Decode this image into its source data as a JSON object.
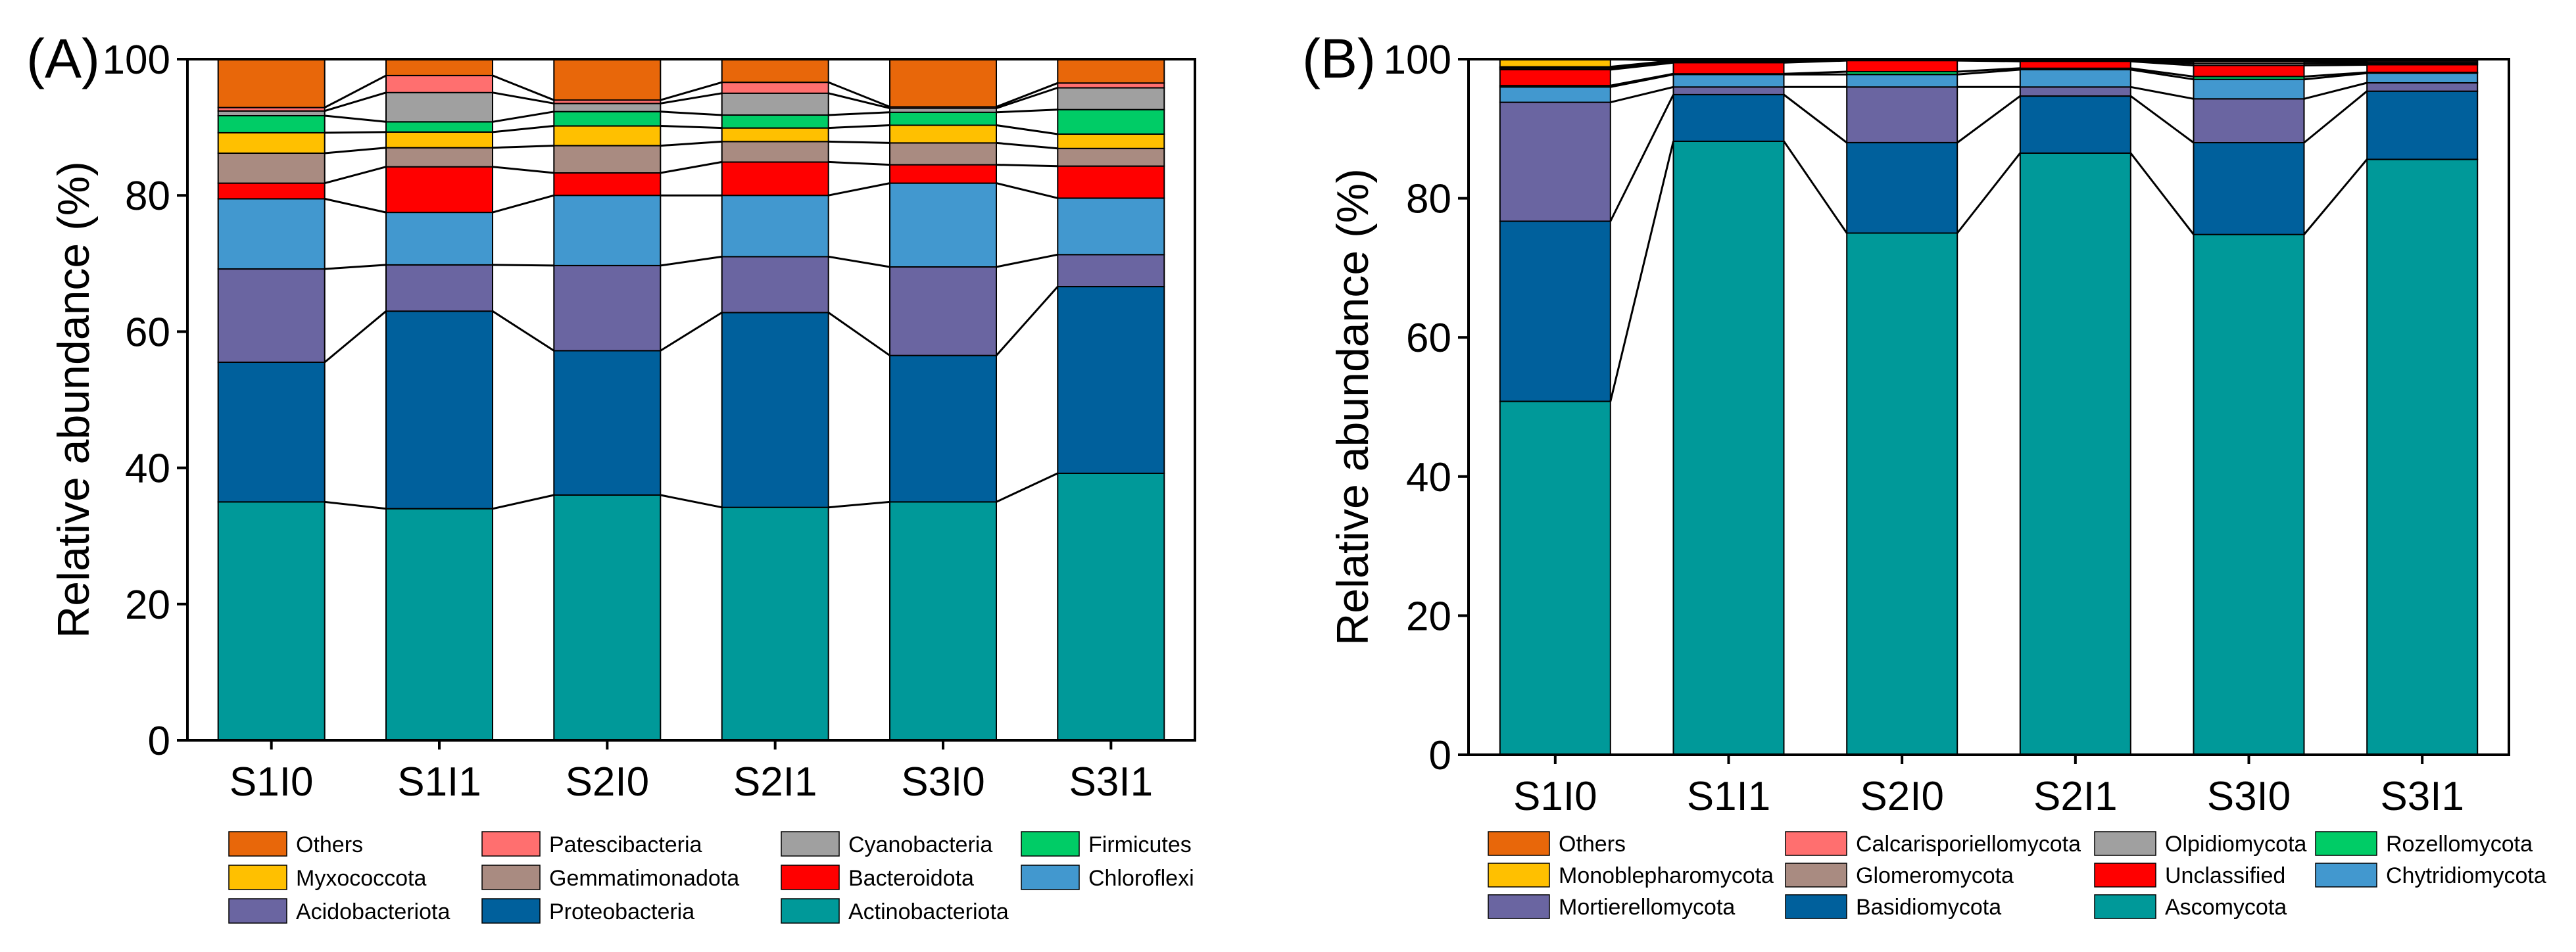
{
  "chart_data": [
    {
      "type": "bar",
      "stacked": true,
      "panel_label": "(A)",
      "ylabel": "Relative abundance (%)",
      "ylim": [
        0,
        100
      ],
      "yticks": [
        0,
        20,
        40,
        60,
        80,
        100
      ],
      "categories": [
        "S1I0",
        "S1I1",
        "S2I0",
        "S2I1",
        "S3I0",
        "S3I1"
      ],
      "series": [
        {
          "name": "Actinobacteriota",
          "color": "#009999",
          "values": [
            35.0,
            34.0,
            36.0,
            34.2,
            35.0,
            39.2
          ]
        },
        {
          "name": "Proteobacteria",
          "color": "#00609C",
          "values": [
            20.5,
            29.0,
            21.2,
            28.6,
            21.5,
            27.4
          ]
        },
        {
          "name": "Acidobacteriota",
          "color": "#6A65A1",
          "values": [
            13.7,
            6.8,
            12.5,
            8.2,
            13.0,
            4.7
          ]
        },
        {
          "name": "Chloroflexi",
          "color": "#4298CF",
          "values": [
            10.3,
            7.7,
            10.3,
            9.0,
            12.3,
            8.3
          ]
        },
        {
          "name": "Bacteroidota",
          "color": "#FF0000",
          "values": [
            2.3,
            6.7,
            3.3,
            4.9,
            2.7,
            4.7
          ]
        },
        {
          "name": "Gemmatimonadota",
          "color": "#A98B81",
          "values": [
            4.4,
            2.8,
            4.0,
            3.0,
            3.2,
            2.6
          ]
        },
        {
          "name": "Myxococcota",
          "color": "#FFC000",
          "values": [
            3.0,
            2.3,
            2.9,
            2.0,
            2.6,
            2.1
          ]
        },
        {
          "name": "Firmicutes",
          "color": "#00CC66",
          "values": [
            2.5,
            1.5,
            2.1,
            1.9,
            1.9,
            3.6
          ]
        },
        {
          "name": "Cyanobacteria",
          "color": "#A0A0A0",
          "values": [
            0.7,
            4.3,
            1.2,
            3.2,
            0.6,
            3.2
          ]
        },
        {
          "name": "Patescibacteria",
          "color": "#FF6F6F",
          "values": [
            0.5,
            2.5,
            0.5,
            1.6,
            0.2,
            0.7
          ]
        },
        {
          "name": "Others",
          "color": "#E8670A",
          "values": [
            7.1,
            2.4,
            6.0,
            3.4,
            7.0,
            3.5
          ]
        }
      ],
      "legend": [
        [
          "Others",
          "Patescibacteria",
          "Cyanobacteria",
          "Firmicutes"
        ],
        [
          "Myxococcota",
          "Gemmatimonadota",
          "Bacteroidota",
          "Chloroflexi"
        ],
        [
          "Acidobacteriota",
          "Proteobacteria",
          "Actinobacteriota"
        ]
      ],
      "legend_position": "bottom"
    },
    {
      "type": "bar",
      "stacked": true,
      "panel_label": "(B)",
      "ylabel": "Relative abundance (%)",
      "ylim": [
        0,
        100
      ],
      "yticks": [
        0,
        20,
        40,
        60,
        80,
        100
      ],
      "categories": [
        "S1I0",
        "S1I1",
        "S2I0",
        "S2I1",
        "S3I0",
        "S3I1"
      ],
      "series": [
        {
          "name": "Ascomycota",
          "color": "#009999",
          "values": [
            50.8,
            88.2,
            75.0,
            86.5,
            74.8,
            85.6
          ]
        },
        {
          "name": "Basidiomycota",
          "color": "#00609C",
          "values": [
            25.9,
            6.7,
            13.0,
            8.2,
            13.2,
            9.8
          ]
        },
        {
          "name": "Mortierellomycota",
          "color": "#6A65A1",
          "values": [
            17.1,
            1.1,
            8.0,
            1.3,
            6.3,
            1.2
          ]
        },
        {
          "name": "Chytridiomycota",
          "color": "#4298CF",
          "values": [
            2.2,
            1.8,
            1.8,
            2.5,
            2.8,
            1.4
          ]
        },
        {
          "name": "Rozellomycota",
          "color": "#00CC66",
          "values": [
            0.2,
            0.1,
            0.4,
            0.2,
            0.4,
            0.1
          ]
        },
        {
          "name": "Unclassified",
          "color": "#FF0000",
          "values": [
            2.3,
            1.6,
            1.6,
            1.0,
            1.6,
            1.1
          ]
        },
        {
          "name": "Olpidiomycota",
          "color": "#A0A0A0",
          "values": [
            0.2,
            0.1,
            0.1,
            0.1,
            0.3,
            0.2
          ]
        },
        {
          "name": "Glomeromycota",
          "color": "#A98B81",
          "values": [
            0.1,
            0.1,
            0.1,
            0.1,
            0.3,
            0.2
          ]
        },
        {
          "name": "Calcarisporiellomycota",
          "color": "#FF6F6F",
          "values": [
            0.1,
            0.1,
            0.0,
            0.0,
            0.1,
            0.2
          ]
        },
        {
          "name": "Monoblepharomycota",
          "color": "#FFC000",
          "values": [
            1.6,
            0.0,
            0.0,
            0.0,
            0.0,
            0.0
          ]
        },
        {
          "name": "Others",
          "color": "#E8670A",
          "values": [
            0.5,
            0.2,
            0.0,
            0.1,
            0.2,
            0.2
          ]
        }
      ],
      "legend": [
        [
          "Others",
          "Calcarisporiellomycota",
          "Olpidiomycota",
          "Rozellomycota"
        ],
        [
          "Monoblepharomycota",
          "Glomeromycota",
          "Unclassified",
          "Chytridiomycota"
        ],
        [
          "Mortierellomycota",
          "Basidiomycota",
          "Ascomycota"
        ]
      ],
      "legend_position": "bottom"
    }
  ]
}
